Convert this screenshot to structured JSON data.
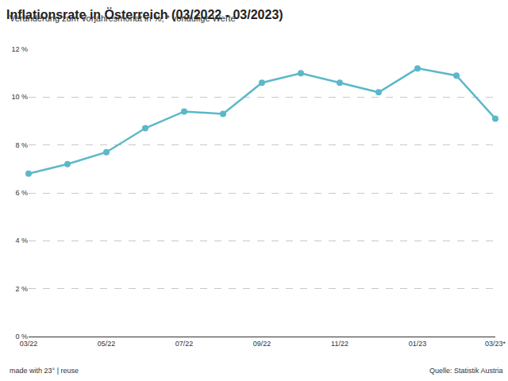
{
  "chart_data": {
    "type": "line",
    "title": "Inflationsrate in Österreich (03/2022 - 03/2023)",
    "subtitle": "Veränderung zum Vorjahresmonat in %; * vorläufige Werte",
    "annotations": [
      "made with 23° | reuse",
      "Quelle: Statistik Austria"
    ],
    "categories": [
      "03/22",
      null,
      "05/22",
      null,
      "07/22",
      null,
      "09/22",
      null,
      "11/22",
      null,
      "01/23",
      null,
      "03/23*"
    ],
    "values": [
      6.8,
      7.2,
      7.7,
      8.7,
      9.4,
      9.3,
      10.6,
      11.0,
      10.6,
      10.2,
      11.2,
      10.9,
      9.1
    ],
    "color": "#5bb8c9",
    "marker": "circle",
    "line_style": "solid",
    "ylim": [
      0,
      12
    ],
    "yticks": [
      {
        "value": 0,
        "label": "0 %"
      },
      {
        "value": 2,
        "label": "2 %"
      },
      {
        "value": 4,
        "label": "4 %"
      },
      {
        "value": 6,
        "label": "6 %"
      },
      {
        "value": 8,
        "label": "8 %"
      },
      {
        "value": 10,
        "label": "10 %"
      },
      {
        "value": 12,
        "label": "12 %"
      }
    ],
    "grid": true
  }
}
